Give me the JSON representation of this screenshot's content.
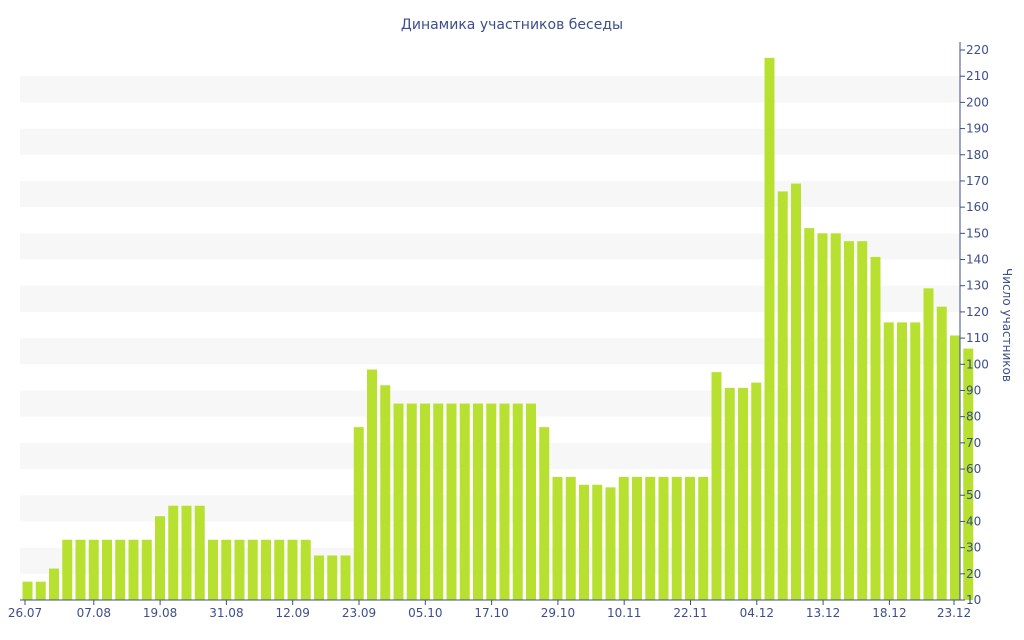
{
  "chart_data": {
    "type": "bar",
    "title": "Динамика участников беседы",
    "xlabel": "",
    "ylabel": "Число участников",
    "ylim": [
      10,
      220
    ],
    "y_axis_side": "right",
    "grid": "alternating horizontal bands",
    "colors": {
      "bar": "#b7e030",
      "text": "#3d4e8c",
      "band": "#f7f7f7",
      "axis": "#3d4e8c"
    },
    "x_tick_labels": [
      "26.07",
      "07.08",
      "19.08",
      "31.08",
      "12.09",
      "23.09",
      "05.10",
      "17.10",
      "29.10",
      "10.11",
      "22.11",
      "04.12",
      "13.12",
      "18.12",
      "23.12"
    ],
    "y_tick_labels": [
      "10",
      "20",
      "30",
      "40",
      "50",
      "60",
      "70",
      "80",
      "90",
      "100",
      "110",
      "120",
      "130",
      "140",
      "150",
      "160",
      "170",
      "180",
      "190",
      "200",
      "210",
      "220"
    ],
    "values": [
      17,
      17,
      22,
      33,
      33,
      33,
      33,
      33,
      33,
      33,
      42,
      46,
      46,
      46,
      33,
      33,
      33,
      33,
      33,
      33,
      33,
      33,
      27,
      27,
      27,
      76,
      98,
      92,
      85,
      85,
      85,
      85,
      85,
      85,
      85,
      85,
      85,
      85,
      85,
      76,
      57,
      57,
      54,
      54,
      53,
      57,
      57,
      57,
      57,
      57,
      57,
      57,
      97,
      91,
      91,
      93,
      217,
      166,
      169,
      152,
      150,
      150,
      147,
      147,
      141,
      116,
      116,
      116,
      129,
      122,
      111,
      106
    ]
  }
}
